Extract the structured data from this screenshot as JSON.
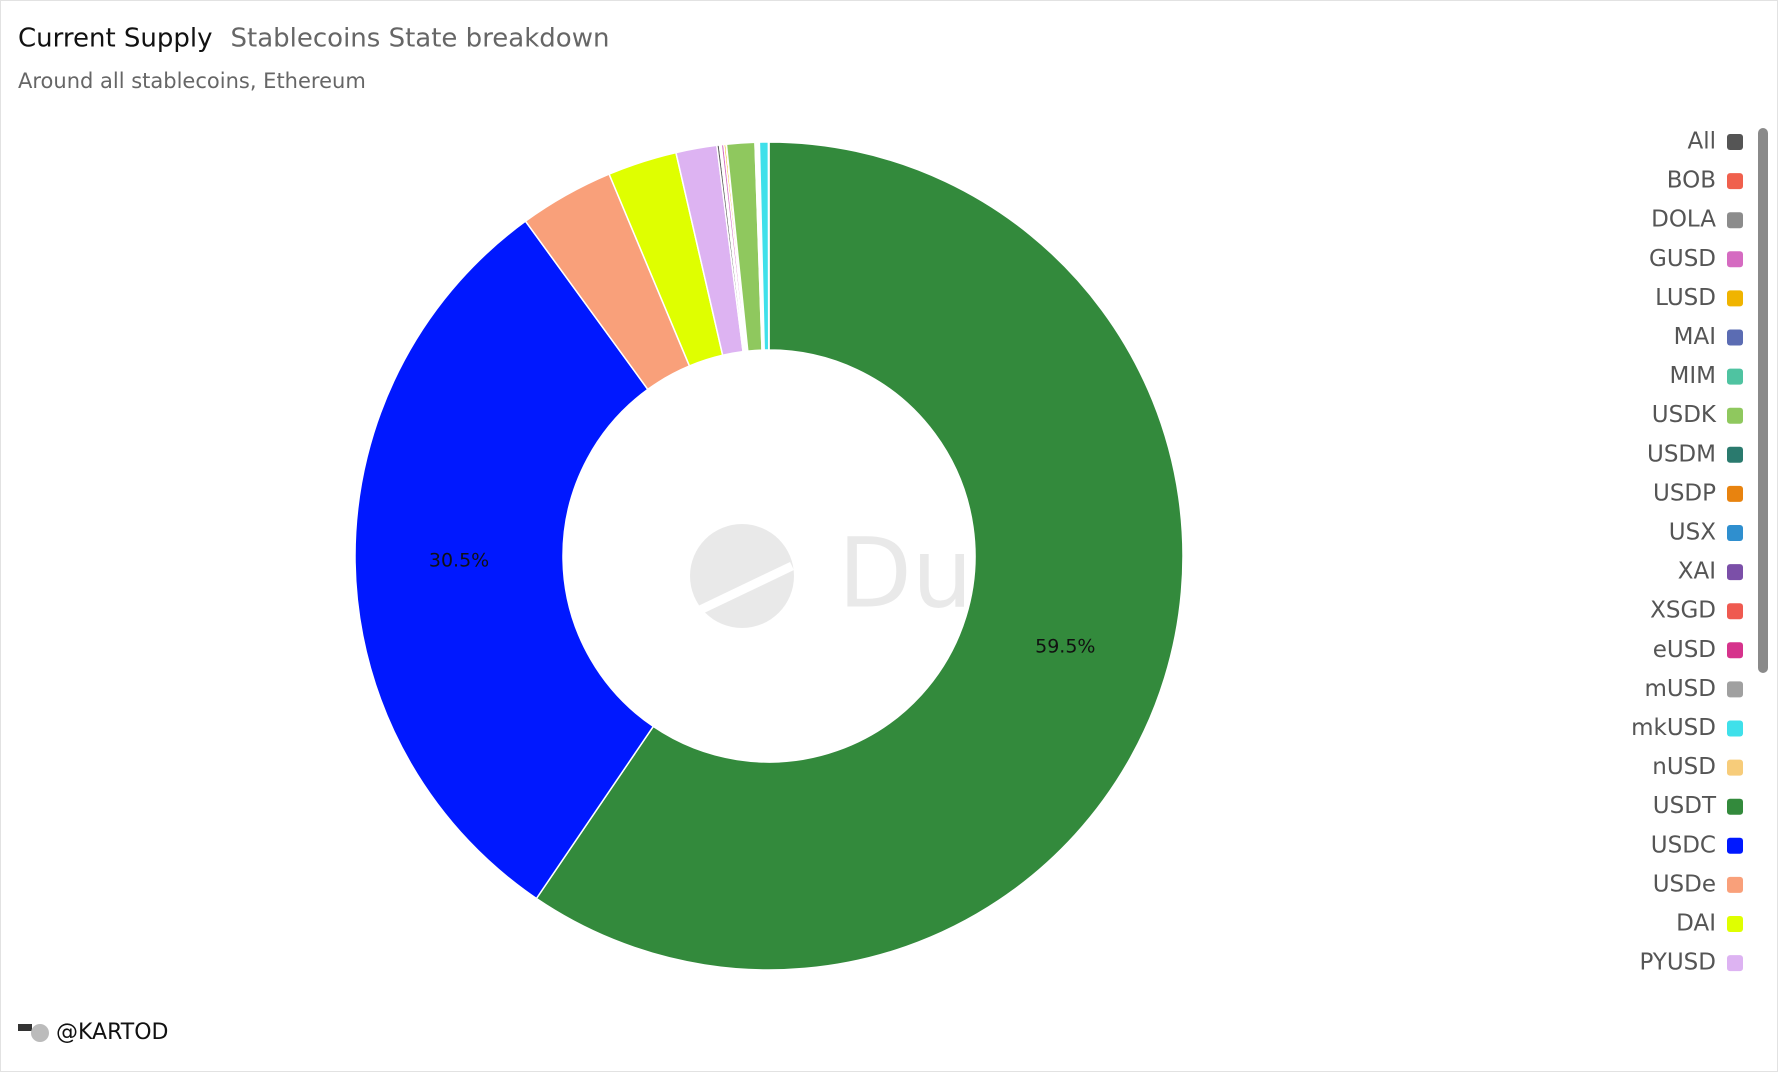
{
  "chart_data": {
    "type": "donut",
    "title": "Current Supply",
    "subtitle": "Stablecoins State breakdown",
    "description": "Around all stablecoins, Ethereum",
    "watermark": "Dune",
    "author": "@KARTOD",
    "start_category": "USDT",
    "categories": [
      "All",
      "BOB",
      "DOLA",
      "GUSD",
      "LUSD",
      "MAI",
      "MIM",
      "USDK",
      "USDM",
      "USDP",
      "USX",
      "XAI",
      "XSGD",
      "eUSD",
      "mUSD",
      "mkUSD",
      "nUSD",
      "USDT",
      "USDC",
      "USDe",
      "DAI",
      "PYUSD"
    ],
    "values": [
      0.1,
      0.02,
      0.05,
      0.1,
      0.08,
      0.01,
      0.01,
      1.1,
      0.02,
      0.03,
      0.02,
      0.01,
      0.01,
      0.05,
      0.03,
      0.35,
      0.02,
      59.5,
      30.5,
      3.7,
      2.7,
      1.6
    ],
    "value_labels": [
      null,
      null,
      null,
      null,
      null,
      null,
      null,
      null,
      null,
      null,
      null,
      null,
      null,
      null,
      null,
      null,
      null,
      "59.5%",
      "30.5%",
      null,
      null,
      null
    ],
    "colors": [
      "#555555",
      "#f0604d",
      "#8c8c8c",
      "#d56bc1",
      "#f0b400",
      "#5b6cb3",
      "#4fc3a1",
      "#8fc85e",
      "#2a7a6e",
      "#e8830f",
      "#2f8fcf",
      "#7b4fa8",
      "#ef5a50",
      "#d6338c",
      "#a0a0a0",
      "#3fe0ea",
      "#f7cc7a",
      "#338a3c",
      "#0018ff",
      "#f9a07a",
      "#dfff00",
      "#ddb3f2"
    ],
    "legend": "right"
  }
}
